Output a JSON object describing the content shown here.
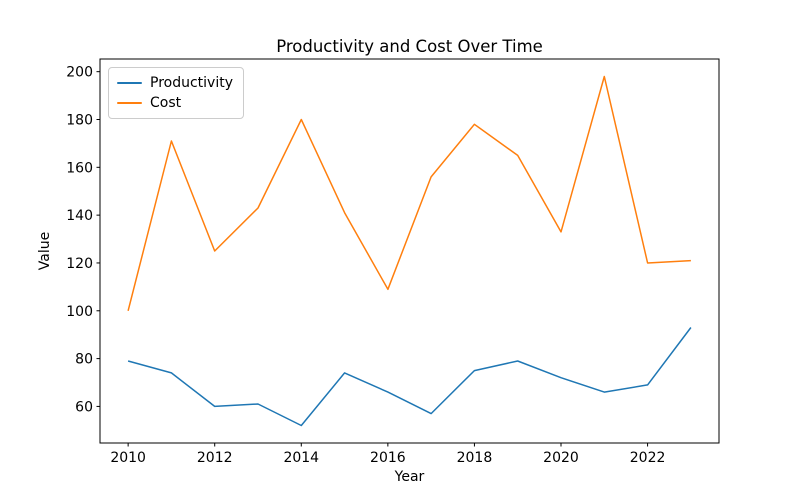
{
  "figure": {
    "title": "Productivity and Cost Over Time",
    "xlabel": "Year",
    "ylabel": "Value"
  },
  "chart_data": {
    "type": "line",
    "title": "Productivity and Cost Over Time",
    "xlabel": "Year",
    "ylabel": "Value",
    "x": [
      2010,
      2011,
      2012,
      2013,
      2014,
      2015,
      2016,
      2017,
      2018,
      2019,
      2020,
      2021,
      2022,
      2023
    ],
    "series": [
      {
        "name": "Productivity",
        "color": "#1f77b4",
        "values": [
          79,
          74,
          60,
          61,
          52,
          74,
          66,
          57,
          75,
          79,
          72,
          66,
          69,
          93
        ]
      },
      {
        "name": "Cost",
        "color": "#ff7f0e",
        "values": [
          100,
          171,
          125,
          143,
          180,
          141,
          109,
          156,
          178,
          165,
          133,
          198,
          120,
          121
        ]
      }
    ],
    "x_ticks": [
      2010,
      2012,
      2014,
      2016,
      2018,
      2020,
      2022
    ],
    "y_ticks": [
      60,
      80,
      100,
      120,
      140,
      160,
      180,
      200
    ],
    "xlim": [
      2009.35,
      2023.65
    ],
    "ylim": [
      44.7,
      205.3
    ],
    "grid": false,
    "legend_position": "upper left",
    "spine_color": "#000000"
  }
}
